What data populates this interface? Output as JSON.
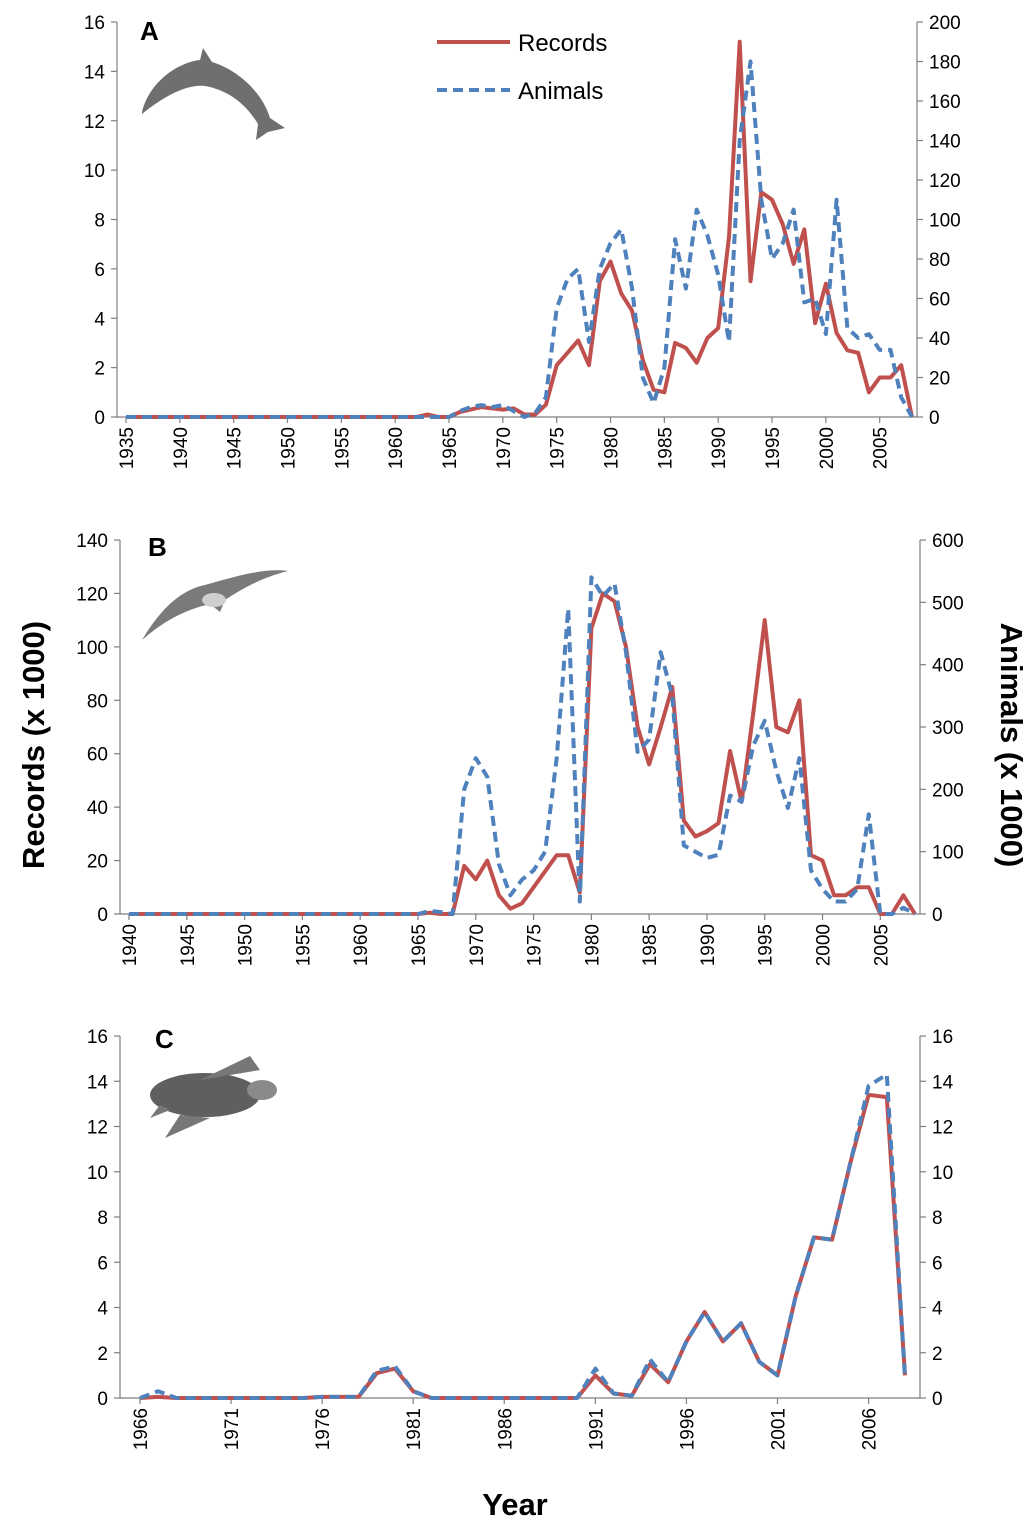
{
  "chart_data": [
    {
      "type": "line",
      "label": "A",
      "legend": "top",
      "x": [
        1935,
        1936,
        1937,
        1938,
        1939,
        1940,
        1941,
        1942,
        1943,
        1944,
        1945,
        1946,
        1947,
        1948,
        1949,
        1950,
        1951,
        1952,
        1953,
        1954,
        1955,
        1956,
        1957,
        1958,
        1959,
        1960,
        1961,
        1962,
        1963,
        1964,
        1965,
        1966,
        1967,
        1968,
        1969,
        1970,
        1971,
        1972,
        1973,
        1974,
        1975,
        1976,
        1977,
        1978,
        1979,
        1980,
        1981,
        1982,
        1983,
        1984,
        1985,
        1986,
        1987,
        1988,
        1989,
        1990,
        1991,
        1992,
        1993,
        1994,
        1995,
        1996,
        1997,
        1998,
        1999,
        2000,
        2001,
        2002,
        2003,
        2004,
        2005,
        2006,
        2007,
        2008
      ],
      "xlim": [
        1935,
        2008
      ],
      "xticks": [
        1935,
        1940,
        1945,
        1950,
        1955,
        1960,
        1965,
        1970,
        1975,
        1980,
        1985,
        1990,
        1995,
        2000,
        2005
      ],
      "ylim": [
        0,
        16
      ],
      "yticks": [
        0,
        2,
        4,
        6,
        8,
        10,
        12,
        14,
        16
      ],
      "y2lim": [
        0,
        200
      ],
      "y2ticks": [
        0,
        20,
        40,
        60,
        80,
        100,
        120,
        140,
        160,
        180,
        200
      ],
      "series": [
        {
          "name": "Records",
          "color": "#c0504d",
          "linestyle": "solid",
          "values": [
            0,
            0,
            0,
            0,
            0,
            0,
            0,
            0,
            0,
            0,
            0,
            0,
            0,
            0,
            0,
            0,
            0,
            0,
            0,
            0,
            0,
            0,
            0,
            0,
            0,
            0,
            0,
            0,
            0.1,
            0,
            0,
            0.2,
            0.3,
            0.4,
            0.35,
            0.3,
            0.35,
            0.1,
            0.1,
            0.5,
            2.1,
            2.6,
            3.1,
            2.1,
            5.5,
            6.3,
            5.0,
            4.3,
            2.3,
            1.1,
            1.0,
            3.0,
            2.8,
            2.2,
            3.2,
            3.6,
            7.3,
            15.2,
            5.5,
            9.1,
            8.8,
            7.8,
            6.2,
            7.6,
            3.8,
            5.4,
            3.4,
            2.7,
            2.6,
            1.0,
            1.6,
            1.6,
            2.1,
            0
          ]
        },
        {
          "name": "Animals",
          "color": "#4f81bd",
          "linestyle": "dashed",
          "axis": "y2",
          "values": [
            0,
            0,
            0,
            0,
            0,
            0,
            0,
            0,
            0,
            0,
            0,
            0,
            0,
            0,
            0,
            0,
            0,
            0,
            0,
            0,
            0,
            0,
            0,
            0,
            0,
            0,
            0,
            0,
            0,
            0,
            0,
            3,
            5,
            6,
            5,
            6,
            3,
            0,
            2,
            10,
            55,
            70,
            75,
            38,
            75,
            88,
            95,
            65,
            20,
            7,
            25,
            90,
            65,
            105,
            92,
            72,
            38,
            140,
            180,
            110,
            80,
            88,
            105,
            58,
            60,
            42,
            110,
            45,
            40,
            42,
            34,
            34,
            10,
            0
          ]
        }
      ]
    },
    {
      "type": "line",
      "label": "B",
      "ylabel": "Records (x 1000)",
      "y2label": "Animals (x 1000)",
      "x": [
        1940,
        1941,
        1942,
        1943,
        1944,
        1945,
        1946,
        1947,
        1948,
        1949,
        1950,
        1951,
        1952,
        1953,
        1954,
        1955,
        1956,
        1957,
        1958,
        1959,
        1960,
        1961,
        1962,
        1963,
        1964,
        1965,
        1966,
        1967,
        1968,
        1969,
        1970,
        1971,
        1972,
        1973,
        1974,
        1975,
        1976,
        1977,
        1978,
        1979,
        1980,
        1981,
        1982,
        1983,
        1984,
        1985,
        1986,
        1987,
        1988,
        1989,
        1990,
        1991,
        1992,
        1993,
        1994,
        1995,
        1996,
        1997,
        1998,
        1999,
        2000,
        2001,
        2002,
        2003,
        2004,
        2005,
        2006,
        2007,
        2008
      ],
      "xlim": [
        1940,
        2008
      ],
      "xticks": [
        1940,
        1945,
        1950,
        1955,
        1960,
        1965,
        1970,
        1975,
        1980,
        1985,
        1990,
        1995,
        2000,
        2005
      ],
      "ylim": [
        0,
        140
      ],
      "yticks": [
        0,
        20,
        40,
        60,
        80,
        100,
        120,
        140
      ],
      "y2lim": [
        0,
        600
      ],
      "y2ticks": [
        0,
        100,
        200,
        300,
        400,
        500,
        600
      ],
      "series": [
        {
          "name": "Records",
          "color": "#c0504d",
          "linestyle": "solid",
          "values": [
            0,
            0,
            0,
            0,
            0,
            0,
            0,
            0,
            0,
            0,
            0,
            0,
            0,
            0,
            0,
            0,
            0,
            0,
            0,
            0,
            0,
            0,
            0,
            0,
            0,
            0,
            0.5,
            0,
            0,
            18,
            13,
            20,
            7,
            2,
            4,
            10,
            16,
            22,
            22,
            8,
            107,
            120,
            117,
            100,
            70,
            56,
            70,
            85,
            35,
            29,
            31,
            34,
            61,
            42,
            75,
            110,
            70,
            68,
            80,
            22,
            20,
            7,
            7,
            10,
            10,
            0,
            0,
            7,
            0
          ]
        },
        {
          "name": "Animals",
          "color": "#4f81bd",
          "linestyle": "dashed",
          "axis": "y2",
          "values": [
            0,
            0,
            0,
            0,
            0,
            0,
            0,
            0,
            0,
            0,
            0,
            0,
            0,
            0,
            0,
            0,
            0,
            0,
            0,
            0,
            0,
            0,
            0,
            0,
            0,
            0,
            5,
            3,
            0,
            200,
            250,
            220,
            80,
            30,
            55,
            70,
            100,
            250,
            490,
            20,
            540,
            510,
            530,
            420,
            260,
            280,
            420,
            350,
            110,
            100,
            90,
            95,
            190,
            180,
            270,
            310,
            230,
            170,
            250,
            70,
            40,
            20,
            20,
            40,
            160,
            0,
            0,
            10,
            0
          ]
        }
      ]
    },
    {
      "type": "line",
      "label": "C",
      "xlabel": "Year",
      "x": [
        1966,
        1967,
        1968,
        1969,
        1970,
        1971,
        1972,
        1973,
        1974,
        1975,
        1976,
        1977,
        1978,
        1979,
        1980,
        1981,
        1982,
        1983,
        1984,
        1985,
        1986,
        1987,
        1988,
        1989,
        1990,
        1991,
        1992,
        1993,
        1994,
        1995,
        1996,
        1997,
        1998,
        1999,
        2000,
        2001,
        2002,
        2003,
        2004,
        2005,
        2006,
        2007,
        2008
      ],
      "xlim": [
        1966,
        2008
      ],
      "xticks": [
        1966,
        1971,
        1976,
        1981,
        1986,
        1991,
        1996,
        2001,
        2006
      ],
      "ylim": [
        0,
        16
      ],
      "yticks": [
        0,
        2,
        4,
        6,
        8,
        10,
        12,
        14,
        16
      ],
      "y2lim": [
        0,
        16
      ],
      "y2ticks": [
        0,
        2,
        4,
        6,
        8,
        10,
        12,
        14,
        16
      ],
      "series": [
        {
          "name": "Records",
          "color": "#c0504d",
          "linestyle": "solid",
          "values": [
            0,
            0.05,
            0,
            0,
            0,
            0,
            0,
            0,
            0,
            0,
            0.05,
            0.05,
            0.05,
            1.1,
            1.3,
            0.3,
            0,
            0,
            0,
            0,
            0,
            0,
            0,
            0,
            0,
            1.0,
            0.2,
            0.1,
            1.5,
            0.7,
            2.5,
            3.8,
            2.5,
            3.3,
            1.6,
            1.0,
            4.5,
            7.1,
            7.0,
            10.4,
            13.4,
            13.3,
            1.0
          ]
        },
        {
          "name": "Animals",
          "color": "#4f81bd",
          "linestyle": "dashed",
          "axis": "y2",
          "values": [
            0,
            0.3,
            0,
            0,
            0,
            0,
            0,
            0,
            0,
            0,
            0.05,
            0.05,
            0.05,
            1.2,
            1.4,
            0.3,
            0,
            0,
            0,
            0,
            0,
            0,
            0,
            0,
            0,
            1.3,
            0.2,
            0.1,
            1.7,
            0.7,
            2.5,
            3.8,
            2.5,
            3.3,
            1.6,
            1.0,
            4.5,
            7.1,
            7.0,
            10.4,
            13.8,
            14.3,
            0.9
          ]
        }
      ]
    }
  ]
}
